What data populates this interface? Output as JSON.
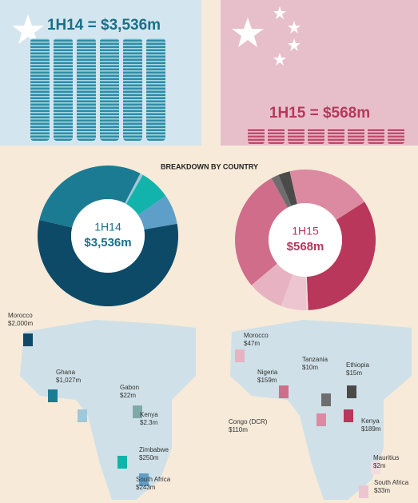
{
  "header": {
    "left_total": "1H14 = $3,536m",
    "right_total": "1H15 = $568m",
    "subtitle": "BREAKDOWN BY COUNTRY"
  },
  "chart_data": [
    {
      "type": "donut",
      "center_title": "1H14",
      "center_value": "$3,536m",
      "categories": [
        "Morocco",
        "Ghana",
        "Gabon",
        "Kenya",
        "Zimbabwe",
        "South Africa"
      ],
      "values": [
        2000,
        1027,
        22,
        2.3,
        250,
        243
      ],
      "value_labels": [
        "$2,000m",
        "$1,027m",
        "$22m",
        "$2.3m",
        "$250m",
        "$243m"
      ],
      "colors": [
        "#0d4a68",
        "#1b7b93",
        "#9fc8d8",
        "#7fa9a9",
        "#12b3ab",
        "#5d9fc8"
      ]
    },
    {
      "type": "donut",
      "center_title": "1H15",
      "center_value": "$568m",
      "categories": [
        "Morocco",
        "Nigeria",
        "Tanzania",
        "Ethiopia",
        "Congo (DCR)",
        "Kenya",
        "Mauritius",
        "South Africa"
      ],
      "values": [
        47,
        159,
        10,
        15,
        110,
        189,
        2,
        33
      ],
      "value_labels": [
        "$47m",
        "$159m",
        "$10m",
        "$15m",
        "$110m",
        "$189m",
        "$2m",
        "$33m"
      ],
      "colors": [
        "#e7b3c2",
        "#d06d8b",
        "#6e6e6e",
        "#4a4a4a",
        "#dc8aa2",
        "#b8375b",
        "#f3dbe2",
        "#ecc5d1"
      ]
    }
  ]
}
